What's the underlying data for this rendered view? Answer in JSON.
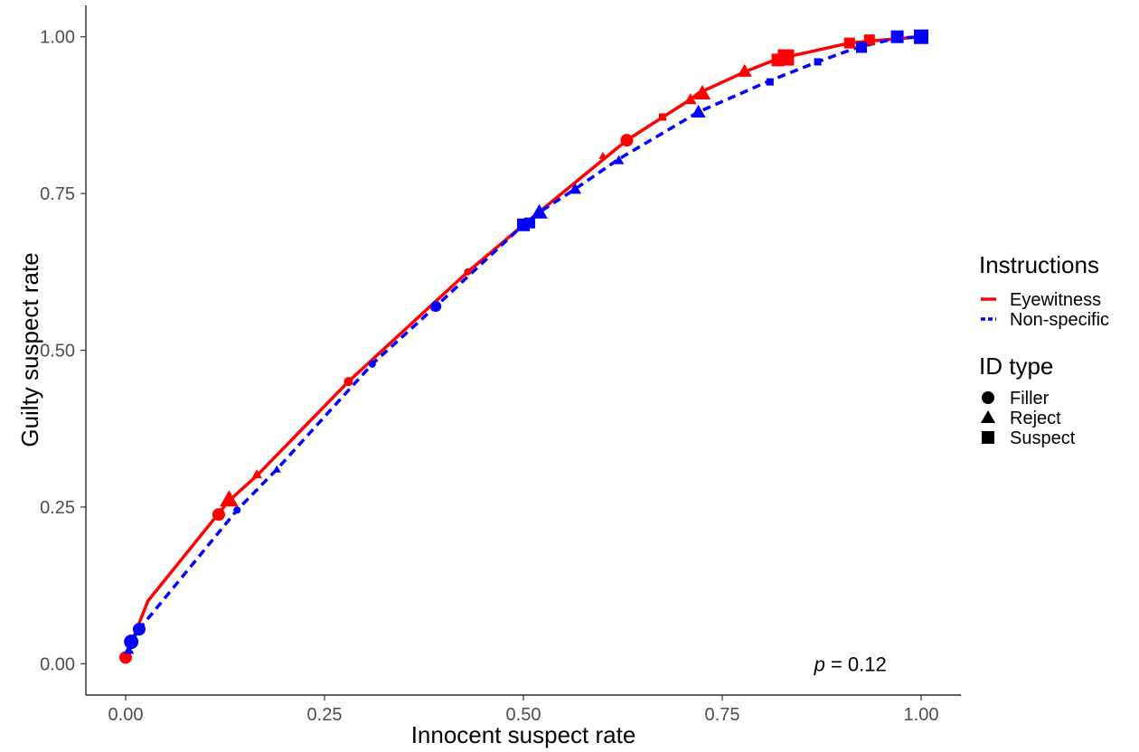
{
  "chart_data": {
    "type": "line",
    "xlabel": "Innocent suspect rate",
    "ylabel": "Guilty suspect rate",
    "xlim": [
      -0.05,
      1.05
    ],
    "ylim": [
      -0.05,
      1.05
    ],
    "x_ticks": [
      0,
      0.25,
      0.5,
      0.75,
      1
    ],
    "y_ticks": [
      0,
      0.25,
      0.5,
      0.75,
      1
    ],
    "x_tick_labels": [
      "0.00",
      "0.25",
      "0.50",
      "0.75",
      "1.00"
    ],
    "y_tick_labels": [
      "0.00",
      "0.25",
      "0.50",
      "0.75",
      "1.00"
    ],
    "grid": false,
    "legend_position": "right",
    "annotation": {
      "italic": "p",
      "text": " = 0.12",
      "x": 0.82,
      "y": 0.0
    },
    "legend": {
      "color_title": "Instructions",
      "shape_title": "ID type",
      "shapes": [
        {
          "label": "Filler",
          "shape": "circle"
        },
        {
          "label": "Reject",
          "shape": "triangle"
        },
        {
          "label": "Suspect",
          "shape": "square"
        }
      ]
    },
    "series": [
      {
        "name": "Eyewitness",
        "color": "#ff0000",
        "linestyle": "solid",
        "line": [
          [
            0,
            0.01
          ],
          [
            0.028,
            0.1
          ],
          [
            0.117,
            0.24
          ],
          [
            0.13,
            0.26
          ],
          [
            0.165,
            0.3
          ],
          [
            0.28,
            0.45
          ],
          [
            0.43,
            0.625
          ],
          [
            0.5,
            0.7
          ],
          [
            0.63,
            0.835
          ],
          [
            0.71,
            0.9
          ],
          [
            0.72,
            0.91
          ],
          [
            0.78,
            0.945
          ],
          [
            0.82,
            0.965
          ],
          [
            0.828,
            0.967
          ],
          [
            0.91,
            0.99
          ],
          [
            0.935,
            0.993
          ],
          [
            1,
            1
          ]
        ],
        "points": [
          {
            "x": 0.0,
            "y": 0.01,
            "shape": "circle",
            "size": 7
          },
          {
            "x": 0.117,
            "y": 0.238,
            "shape": "circle",
            "size": 7
          },
          {
            "x": 0.13,
            "y": 0.262,
            "shape": "triangle",
            "size": 9
          },
          {
            "x": 0.165,
            "y": 0.302,
            "shape": "triangle",
            "size": 5
          },
          {
            "x": 0.28,
            "y": 0.45,
            "shape": "circle",
            "size": 5
          },
          {
            "x": 0.43,
            "y": 0.625,
            "shape": "circle",
            "size": 4
          },
          {
            "x": 0.63,
            "y": 0.835,
            "shape": "circle",
            "size": 7
          },
          {
            "x": 0.6,
            "y": 0.81,
            "shape": "triangle",
            "size": 4
          },
          {
            "x": 0.675,
            "y": 0.872,
            "shape": "square",
            "size": 4
          },
          {
            "x": 0.71,
            "y": 0.9,
            "shape": "triangle",
            "size": 6
          },
          {
            "x": 0.725,
            "y": 0.91,
            "shape": "triangle",
            "size": 8
          },
          {
            "x": 0.778,
            "y": 0.945,
            "shape": "triangle",
            "size": 7
          },
          {
            "x": 0.82,
            "y": 0.963,
            "shape": "square",
            "size": 7
          },
          {
            "x": 0.83,
            "y": 0.967,
            "shape": "square",
            "size": 9
          },
          {
            "x": 0.91,
            "y": 0.99,
            "shape": "square",
            "size": 6
          },
          {
            "x": 0.935,
            "y": 0.995,
            "shape": "square",
            "size": 6
          },
          {
            "x": 1.0,
            "y": 1.0,
            "shape": "square",
            "size": 5
          }
        ]
      },
      {
        "name": "Non-specific",
        "color": "#0000ff",
        "linestyle": "dashed",
        "line": [
          [
            0.003,
            0.015
          ],
          [
            0.007,
            0.035
          ],
          [
            0.017,
            0.055
          ],
          [
            0.14,
            0.245
          ],
          [
            0.19,
            0.31
          ],
          [
            0.31,
            0.478
          ],
          [
            0.39,
            0.57
          ],
          [
            0.5,
            0.7
          ],
          [
            0.52,
            0.72
          ],
          [
            0.565,
            0.757
          ],
          [
            0.62,
            0.805
          ],
          [
            0.72,
            0.88
          ],
          [
            0.81,
            0.93
          ],
          [
            0.87,
            0.96
          ],
          [
            0.92,
            0.983
          ],
          [
            0.97,
            0.998
          ],
          [
            1,
            1
          ]
        ],
        "points": [
          {
            "x": 0.004,
            "y": 0.022,
            "shape": "triangle",
            "size": 5
          },
          {
            "x": 0.007,
            "y": 0.035,
            "shape": "circle",
            "size": 8
          },
          {
            "x": 0.017,
            "y": 0.055,
            "shape": "circle",
            "size": 7
          },
          {
            "x": 0.14,
            "y": 0.245,
            "shape": "circle",
            "size": 4
          },
          {
            "x": 0.19,
            "y": 0.31,
            "shape": "triangle",
            "size": 4
          },
          {
            "x": 0.31,
            "y": 0.478,
            "shape": "circle",
            "size": 4
          },
          {
            "x": 0.39,
            "y": 0.57,
            "shape": "circle",
            "size": 6
          },
          {
            "x": 0.5,
            "y": 0.7,
            "shape": "square",
            "size": 7
          },
          {
            "x": 0.508,
            "y": 0.703,
            "shape": "square",
            "size": 6
          },
          {
            "x": 0.52,
            "y": 0.72,
            "shape": "triangle",
            "size": 8
          },
          {
            "x": 0.565,
            "y": 0.757,
            "shape": "triangle",
            "size": 6
          },
          {
            "x": 0.62,
            "y": 0.803,
            "shape": "triangle",
            "size": 5
          },
          {
            "x": 0.72,
            "y": 0.88,
            "shape": "triangle",
            "size": 7
          },
          {
            "x": 0.81,
            "y": 0.928,
            "shape": "square",
            "size": 4
          },
          {
            "x": 0.87,
            "y": 0.96,
            "shape": "square",
            "size": 4
          },
          {
            "x": 0.925,
            "y": 0.983,
            "shape": "square",
            "size": 6
          },
          {
            "x": 0.97,
            "y": 1.0,
            "shape": "square",
            "size": 7
          },
          {
            "x": 1.0,
            "y": 1.0,
            "shape": "square",
            "size": 8
          }
        ]
      }
    ]
  }
}
